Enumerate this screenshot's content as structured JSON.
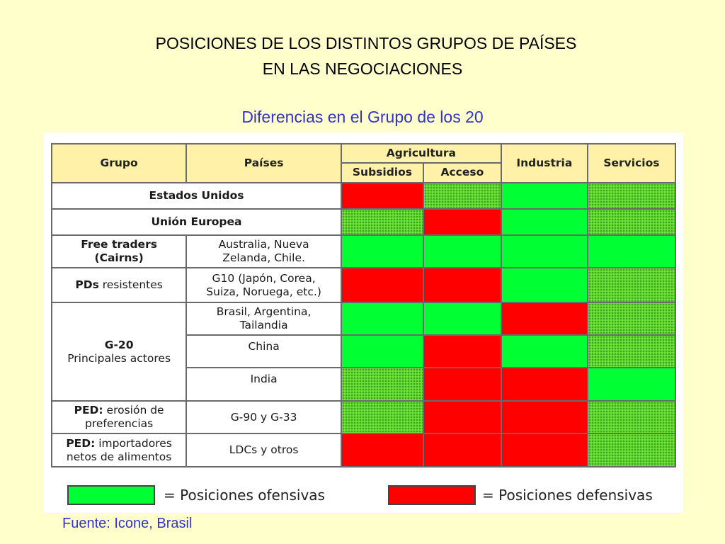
{
  "title_line1": "POSICIONES DE LOS DISTINTOS GRUPOS DE PAÍSES",
  "title_line2": "EN LAS NEGOCIACIONES",
  "subtitle": "Diferencias en el Grupo de los 20",
  "table": {
    "headers": {
      "grupo": "Grupo",
      "paises": "Países",
      "agricultura": "Agricultura",
      "subsidios": "Subsidios",
      "acceso": "Acceso",
      "industria": "Industria",
      "servicios": "Servicios"
    },
    "rows": {
      "estados_unidos": {
        "grupo": "Estados Unidos",
        "cells": [
          "red",
          "textured",
          "green",
          "textured"
        ]
      },
      "union_europea": {
        "grupo": "Unión Europea",
        "cells": [
          "textured",
          "red",
          "green",
          "textured"
        ]
      },
      "free_traders": {
        "grupo_bold": "Free traders",
        "grupo_bold2": "(Cairns)",
        "paises_line1": "Australia, Nueva",
        "paises_line2": "Zelanda, Chile.",
        "cells": [
          "green",
          "green",
          "green",
          "green"
        ]
      },
      "pds": {
        "grupo_bold": "PDs",
        "grupo_rest": " resistentes",
        "paises_line1": "G10 (Japón, Corea,",
        "paises_line2": "Suiza, Noruega, etc.)",
        "cells": [
          "red",
          "red",
          "green",
          "textured"
        ]
      },
      "g20_brasil": {
        "paises_line1": "Brasil, Argentina,",
        "paises_line2": "Tailandia",
        "cells": [
          "green",
          "green",
          "red",
          "textured"
        ]
      },
      "g20_china": {
        "paises": "China",
        "cells": [
          "green",
          "red",
          "green",
          "textured"
        ]
      },
      "g20_india": {
        "paises": "India",
        "cells": [
          "textured",
          "red",
          "red",
          "green"
        ]
      },
      "g20_label": {
        "bold": "G-20",
        "rest": "Principales actores"
      },
      "ped_erosion": {
        "grupo_bold": "PED:",
        "grupo_rest": " erosión de",
        "grupo_line2": "preferencias",
        "paises": "G-90 y G-33",
        "cells": [
          "textured",
          "red",
          "red",
          "textured"
        ]
      },
      "ped_importadores": {
        "grupo_bold": "PED:",
        "grupo_rest": " importadores",
        "grupo_line2": "netos de alimentos",
        "paises": "LDCs y otros",
        "cells": [
          "red",
          "red",
          "red",
          "textured"
        ]
      }
    }
  },
  "legend": {
    "ofensivas": "= Posiciones ofensivas",
    "defensivas": "= Posiciones defensivas"
  },
  "source": "Fuente: Icone, Brasil",
  "colors": {
    "background": "#ffffcc",
    "header": "#fff2a8",
    "green": "#00ff33",
    "red": "#ff0000",
    "textured_green": "#5cd62e",
    "subtitle_blue": "#3333cc"
  }
}
